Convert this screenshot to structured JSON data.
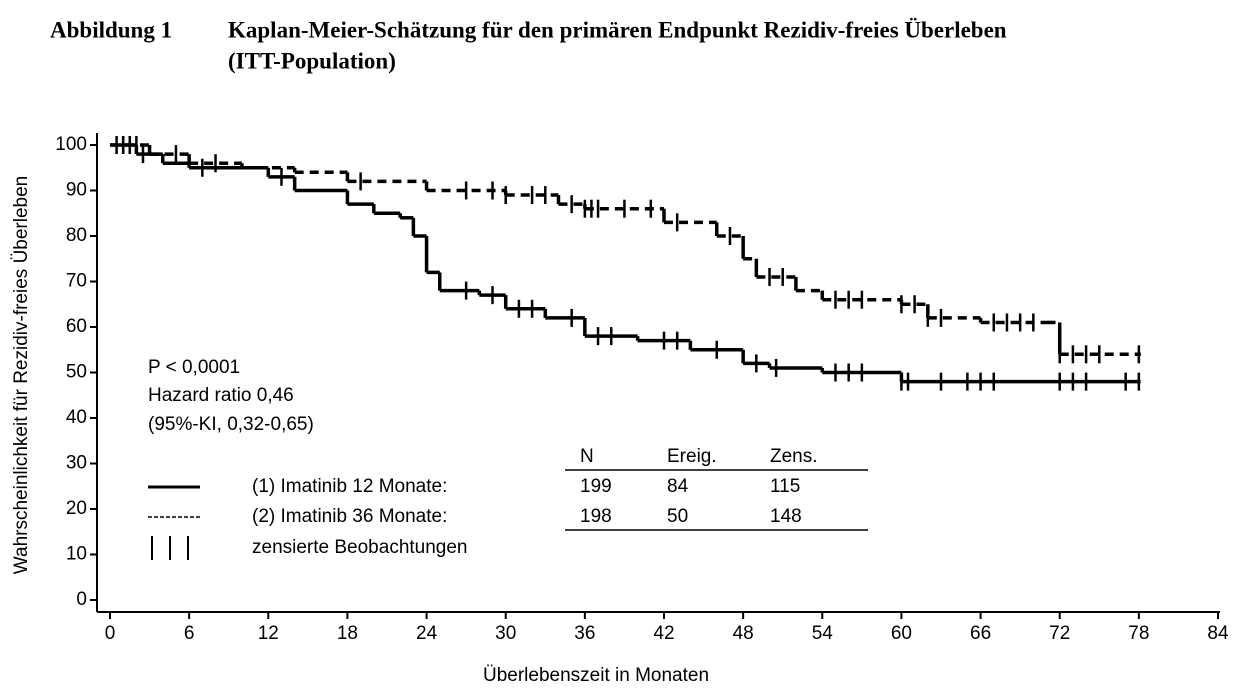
{
  "chart_data": {
    "type": "kaplan-meier",
    "figure_label": "Abbildung 1",
    "title": "Kaplan-Meier-Schätzung für den primären Endpunkt Rezidiv-freies Überleben",
    "subtitle": "(ITT-Population)",
    "x_label": "Überlebenszeit in Monaten",
    "y_label": "Wahrscheinlichkeit für Rezidiv-freies Überleben",
    "xlim": [
      0,
      84
    ],
    "ylim": [
      0,
      100
    ],
    "xticks": [
      0,
      6,
      12,
      18,
      24,
      30,
      36,
      42,
      48,
      54,
      60,
      66,
      72,
      78,
      84
    ],
    "yticks": [
      0,
      10,
      20,
      30,
      40,
      50,
      60,
      70,
      80,
      90,
      100
    ],
    "annotations": [
      "P < 0,0001",
      "Hazard ratio 0,46",
      "(95%-KI, 0,32-0,65)"
    ],
    "censor_legend": "zensierte Beobachtungen",
    "series": [
      {
        "name": "(1) Imatinib 12 Monate:",
        "color": "#000000",
        "line_style": "solid",
        "x": [
          0,
          2,
          4,
          6,
          12,
          14,
          18,
          20,
          22,
          23,
          24,
          25,
          28,
          30,
          33,
          36,
          40,
          44,
          48,
          50,
          54,
          60,
          78
        ],
        "values": [
          100,
          98,
          96,
          95,
          93,
          90,
          87,
          85,
          84,
          80,
          72,
          68,
          67,
          64,
          62,
          58,
          57,
          55,
          52,
          51,
          50,
          48,
          48
        ],
        "censored": [
          1,
          1.5,
          2.5,
          7,
          13,
          27,
          29,
          31,
          32,
          35,
          37,
          38,
          42,
          43,
          46,
          49,
          50.5,
          55,
          56,
          57,
          60,
          60.5,
          63,
          65,
          66,
          67,
          72,
          73,
          74,
          77,
          78
        ]
      },
      {
        "name": "(2) Imatinib 36 Monate:",
        "color": "#000000",
        "line_style": "dashed",
        "x": [
          0,
          3,
          6,
          10,
          14,
          18,
          24,
          30,
          34,
          36,
          42,
          46,
          48,
          49,
          52,
          54,
          60,
          62,
          66,
          71,
          72,
          78
        ],
        "values": [
          100,
          98,
          96,
          95,
          94,
          92,
          90,
          89,
          87,
          86,
          83,
          80,
          75,
          71,
          68,
          66,
          65,
          62,
          61,
          61,
          54,
          54
        ],
        "censored": [
          0.5,
          1,
          1.5,
          2,
          5,
          8,
          19,
          27,
          29,
          30,
          32,
          33,
          35,
          36,
          36.5,
          37,
          39,
          41,
          43,
          47,
          50,
          51,
          55,
          56,
          57,
          60,
          61,
          62,
          63,
          67,
          68,
          69,
          70,
          72,
          73,
          74,
          75,
          78
        ]
      }
    ],
    "table": {
      "header": [
        "N",
        "Ereig.",
        "Zens."
      ],
      "rows": [
        [
          199,
          84,
          115
        ],
        [
          198,
          50,
          148
        ]
      ]
    }
  }
}
